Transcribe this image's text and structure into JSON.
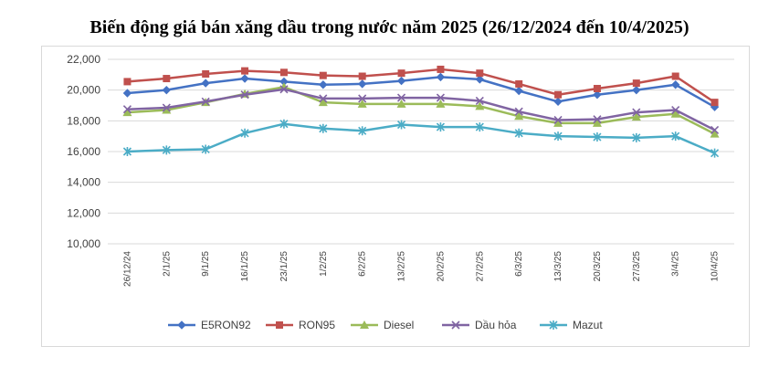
{
  "chart_data": {
    "type": "line",
    "title": "Biến động giá bán xăng dầu trong nước năm 2025 (26/12/2024 đến 10/4/2025)",
    "x": [
      "26/12/24",
      "2/1/25",
      "9/1/25",
      "16/1/25",
      "23/1/25",
      "1/2/25",
      "6/2/25",
      "13/2/25",
      "20/2/25",
      "27/2/25",
      "6/3/25",
      "13/3/25",
      "20/3/25",
      "27/3/25",
      "3/4/25",
      "10/4/25"
    ],
    "ylim": [
      10000,
      22000
    ],
    "y_ticks": [
      "10,000",
      "12,000",
      "14,000",
      "16,000",
      "18,000",
      "20,000",
      "22,000"
    ],
    "grid": true,
    "legend_position": "bottom",
    "series": [
      {
        "name": "E5RON92",
        "color": "#4472c4",
        "marker": "diamond",
        "values": [
          19800,
          20000,
          20450,
          20750,
          20550,
          20350,
          20400,
          20600,
          20850,
          20700,
          19950,
          19250,
          19700,
          20000,
          20350,
          18900
        ]
      },
      {
        "name": "RON95",
        "color": "#c0504d",
        "marker": "square",
        "values": [
          20550,
          20750,
          21050,
          21250,
          21150,
          20950,
          20900,
          21100,
          21350,
          21100,
          20400,
          19700,
          20100,
          20450,
          20900,
          19200
        ]
      },
      {
        "name": "Diesel",
        "color": "#9bbb59",
        "marker": "triangle",
        "values": [
          18550,
          18700,
          19200,
          19750,
          20200,
          19200,
          19100,
          19100,
          19100,
          18950,
          18300,
          17850,
          17850,
          18250,
          18450,
          17150
        ]
      },
      {
        "name": "Dầu hỏa",
        "color": "#8064a2",
        "marker": "x",
        "values": [
          18750,
          18850,
          19250,
          19700,
          20050,
          19450,
          19450,
          19500,
          19500,
          19300,
          18600,
          18050,
          18100,
          18550,
          18700,
          17400
        ]
      },
      {
        "name": "Mazut",
        "color": "#4bacc6",
        "marker": "star",
        "values": [
          16000,
          16100,
          16150,
          17200,
          17800,
          17500,
          17350,
          17750,
          17600,
          17600,
          17200,
          17000,
          16950,
          16900,
          17000,
          15900
        ]
      }
    ]
  }
}
